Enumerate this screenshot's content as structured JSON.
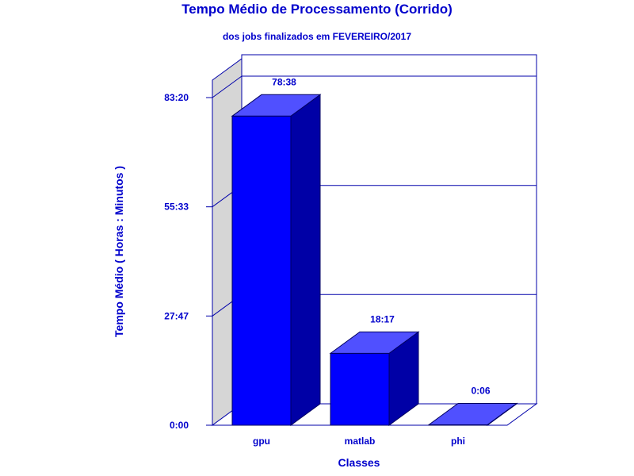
{
  "chart_data": {
    "type": "bar",
    "title": "Tempo Médio de Processamento (Corrido)",
    "subtitle": "dos jobs finalizados em FEVEREIRO/2017",
    "xlabel": "Classes",
    "ylabel": "Tempo Médio ( Horas : Minutos )",
    "categories": [
      "gpu",
      "matlab",
      "phi"
    ],
    "values": [
      4718,
      1097,
      6
    ],
    "value_labels": [
      "78:38",
      "18:17",
      "0:06"
    ],
    "yticks": [
      0,
      1667,
      3333,
      5000
    ],
    "ytick_labels": [
      "0:00",
      "27:47",
      "55:33",
      "83:20"
    ],
    "ylim": [
      0,
      5000
    ],
    "grid": true,
    "legend": "none",
    "colors": {
      "text": "#0000cc",
      "bar_front": "#0000ff",
      "bar_top": "#5050ff",
      "bar_side": "#0000a6",
      "wall_side": "#d6d6d6",
      "frame": "#0000aa"
    }
  }
}
